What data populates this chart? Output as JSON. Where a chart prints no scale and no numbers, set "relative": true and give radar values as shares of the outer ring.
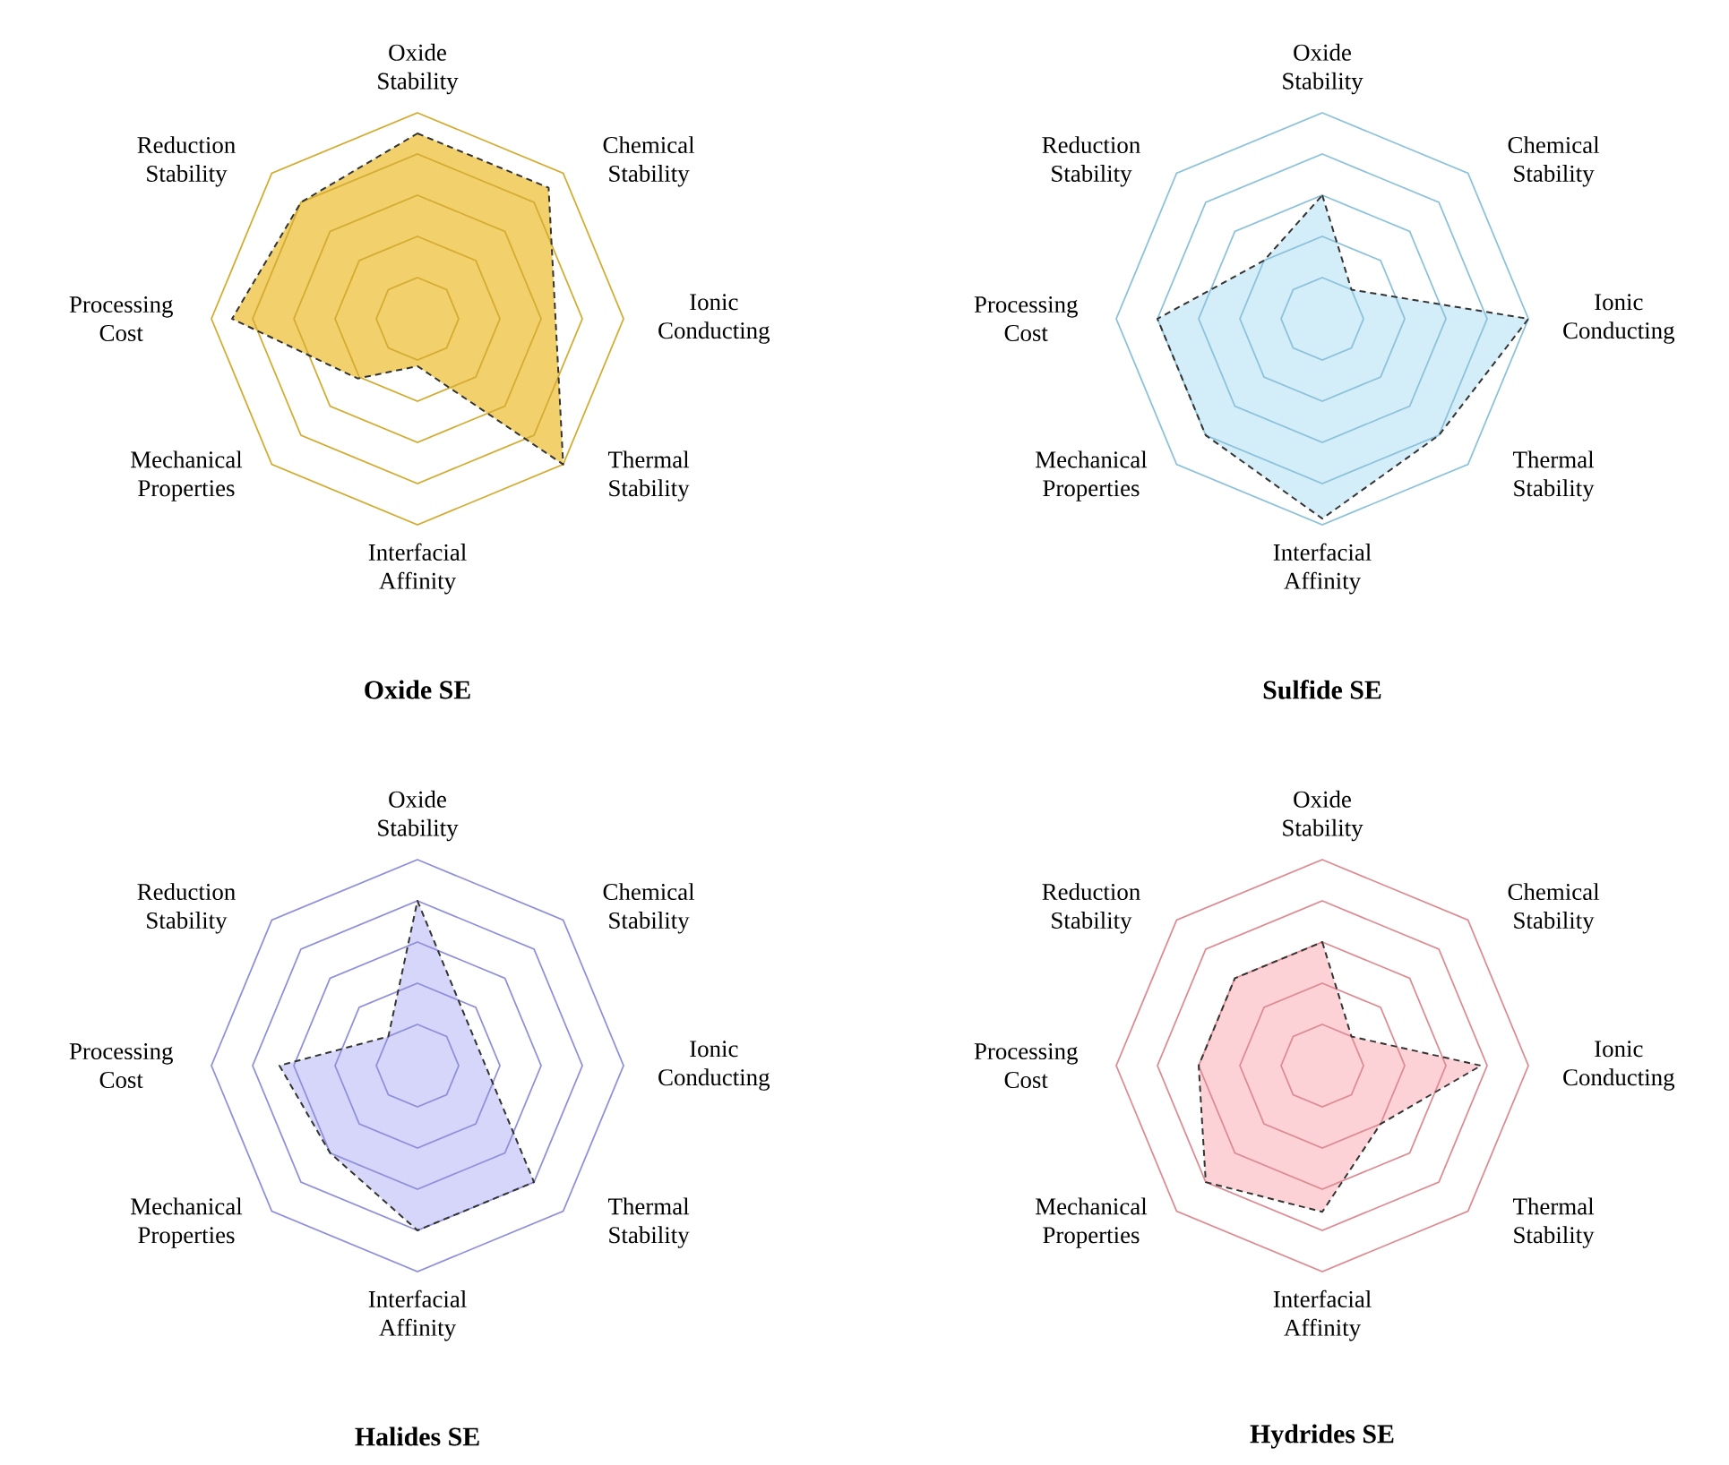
{
  "chart_data": [
    {
      "type": "radar",
      "title": "Oxide SE",
      "relative": true,
      "grid": true,
      "line_style": "dashed",
      "categories": [
        "Oxide Stability",
        "Chemical Stability",
        "Ionic Conducting",
        "Thermal Stability",
        "Interfacial Affinity",
        "Mechanical Properties",
        "Processing Cost",
        "Reduction Stability"
      ],
      "series": [
        {
          "color": "#f2d06b",
          "values": [
            0.9,
            0.9,
            0.67,
            1.0,
            0.23,
            0.41,
            0.9,
            0.8
          ]
        }
      ]
    },
    {
      "type": "radar",
      "title": "Sulfide SE",
      "relative": true,
      "grid": true,
      "line_style": "dashed",
      "categories": [
        "Oxide Stability",
        "Chemical Stability",
        "Ionic Conducting",
        "Thermal Stability",
        "Interfacial Affinity",
        "Mechanical Properties",
        "Processing Cost",
        "Reduction Stability"
      ],
      "series": [
        {
          "color": "#d3edf9",
          "values": [
            0.6,
            0.2,
            1.0,
            0.8,
            0.97,
            0.8,
            0.8,
            0.4
          ]
        }
      ]
    },
    {
      "type": "radar",
      "title": "Halides SE",
      "relative": true,
      "grid": true,
      "line_style": "dashed",
      "categories": [
        "Oxide Stability",
        "Chemical Stability",
        "Ionic Conducting",
        "Thermal Stability",
        "Interfacial Affinity",
        "Mechanical Properties",
        "Processing Cost",
        "Reduction Stability"
      ],
      "series": [
        {
          "color": "#d6d6fa",
          "values": [
            0.8,
            0.33,
            0.33,
            0.8,
            0.8,
            0.6,
            0.67,
            0.2
          ]
        }
      ]
    },
    {
      "type": "radar",
      "title": "Hydrides SE",
      "relative": true,
      "grid": true,
      "line_style": "dashed",
      "categories": [
        "Oxide Stability",
        "Chemical Stability",
        "Ionic Conducting",
        "Thermal Stability",
        "Interfacial Affinity",
        "Mechanical Properties",
        "Processing Cost",
        "Reduction Stability"
      ],
      "series": [
        {
          "color": "#fcd2d6",
          "values": [
            0.6,
            0.2,
            0.77,
            0.4,
            0.71,
            0.8,
            0.6,
            0.6
          ]
        }
      ]
    }
  ]
}
